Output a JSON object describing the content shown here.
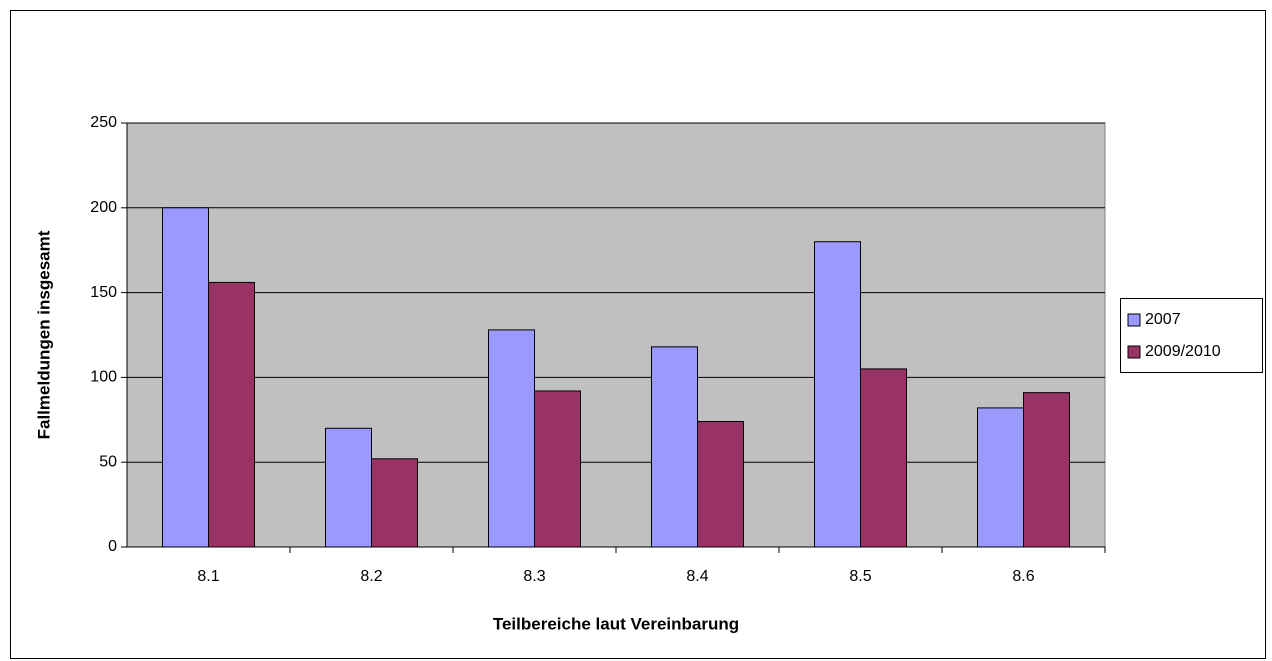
{
  "chart_data": {
    "type": "bar",
    "x_label": "Teilbereiche laut Vereinbarung",
    "y_label": "Fallmeldungen insgesamt",
    "categories": [
      "8.1",
      "8.2",
      "8.3",
      "8.4",
      "8.5",
      "8.6"
    ],
    "series": [
      {
        "name": "2007",
        "color": "#9999ff",
        "values": [
          200,
          70,
          128,
          118,
          180,
          82
        ]
      },
      {
        "name": "2009/2010",
        "color": "#993366",
        "values": [
          156,
          52,
          92,
          74,
          105,
          91
        ]
      }
    ],
    "ylim": [
      0,
      250
    ],
    "yticks": [
      0,
      50,
      100,
      150,
      200,
      250
    ],
    "grid": true,
    "legend": "right"
  }
}
